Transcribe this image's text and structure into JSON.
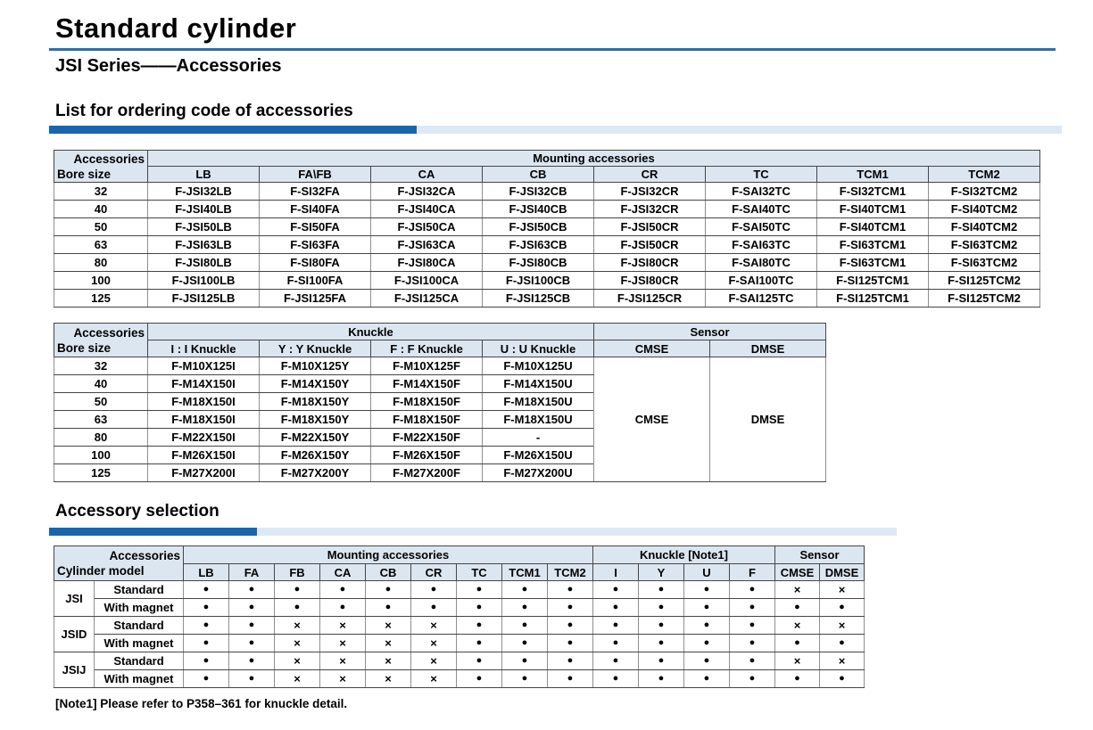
{
  "page": {
    "title": "Standard cylinder",
    "subtitle": "JSI Series——Accessories",
    "section1_heading": "List for ordering code of accessories",
    "section2_heading": "Accessory selection",
    "footnote": "[Note1]  Please refer to P358–361 for knuckle detail."
  },
  "colors": {
    "accent_dark_blue": "#1766ad",
    "accent_light_blue": "#dce9f5",
    "title_rule_blue": "#2c6fad",
    "table_header_bg": "#dce6f1"
  },
  "ordering_table": {
    "corner": {
      "top": "Accessories",
      "bottom": "Bore size"
    },
    "group_header": "Mounting accessories",
    "columns": [
      "LB",
      "FA\\FB",
      "CA",
      "CB",
      "CR",
      "TC",
      "TCM1",
      "TCM2"
    ],
    "rows": [
      {
        "bore": "32",
        "cells": [
          "F-JSI32LB",
          "F-SI32FA",
          "F-JSI32CA",
          "F-JSI32CB",
          "F-JSI32CR",
          "F-SAI32TC",
          "F-SI32TCM1",
          "F-SI32TCM2"
        ]
      },
      {
        "bore": "40",
        "cells": [
          "F-JSI40LB",
          "F-SI40FA",
          "F-JSI40CA",
          "F-JSI40CB",
          "F-JSI32CR",
          "F-SAI40TC",
          "F-SI40TCM1",
          "F-SI40TCM2"
        ]
      },
      {
        "bore": "50",
        "cells": [
          "F-JSI50LB",
          "F-SI50FA",
          "F-JSI50CA",
          "F-JSI50CB",
          "F-JSI50CR",
          "F-SAI50TC",
          "F-SI40TCM1",
          "F-SI40TCM2"
        ]
      },
      {
        "bore": "63",
        "cells": [
          "F-JSI63LB",
          "F-SI63FA",
          "F-JSI63CA",
          "F-JSI63CB",
          "F-JSI50CR",
          "F-SAI63TC",
          "F-SI63TCM1",
          "F-SI63TCM2"
        ]
      },
      {
        "bore": "80",
        "cells": [
          "F-JSI80LB",
          "F-SI80FA",
          "F-JSI80CA",
          "F-JSI80CB",
          "F-JSI80CR",
          "F-SAI80TC",
          "F-SI63TCM1",
          "F-SI63TCM2"
        ]
      },
      {
        "bore": "100",
        "cells": [
          "F-JSI100LB",
          "F-SI100FA",
          "F-JSI100CA",
          "F-JSI100CB",
          "F-JSI80CR",
          "F-SAI100TC",
          "F-SI125TCM1",
          "F-SI125TCM2"
        ]
      },
      {
        "bore": "125",
        "cells": [
          "F-JSI125LB",
          "F-JSI125FA",
          "F-JSI125CA",
          "F-JSI125CB",
          "F-JSI125CR",
          "F-SAI125TC",
          "F-SI125TCM1",
          "F-SI125TCM2"
        ]
      }
    ]
  },
  "knuckle_table": {
    "corner": {
      "top": "Accessories",
      "bottom": "Bore size"
    },
    "group_headers": {
      "knuckle": "Knuckle",
      "sensor": "Sensor"
    },
    "knuckle_columns": [
      "I : I Knuckle",
      "Y : Y Knuckle",
      "F : F Knuckle",
      "U : U Knuckle"
    ],
    "sensor_columns": [
      "CMSE",
      "DMSE"
    ],
    "rows": [
      {
        "bore": "32",
        "cells": [
          "F-M10X125I",
          "F-M10X125Y",
          "F-M10X125F",
          "F-M10X125U"
        ]
      },
      {
        "bore": "40",
        "cells": [
          "F-M14X150I",
          "F-M14X150Y",
          "F-M14X150F",
          "F-M14X150U"
        ]
      },
      {
        "bore": "50",
        "cells": [
          "F-M18X150I",
          "F-M18X150Y",
          "F-M18X150F",
          "F-M18X150U"
        ]
      },
      {
        "bore": "63",
        "cells": [
          "F-M18X150I",
          "F-M18X150Y",
          "F-M18X150F",
          "F-M18X150U"
        ]
      },
      {
        "bore": "80",
        "cells": [
          "F-M22X150I",
          "F-M22X150Y",
          "F-M22X150F",
          "-"
        ]
      },
      {
        "bore": "100",
        "cells": [
          "F-M26X150I",
          "F-M26X150Y",
          "F-M26X150F",
          "F-M26X150U"
        ]
      },
      {
        "bore": "125",
        "cells": [
          "F-M27X200I",
          "F-M27X200Y",
          "F-M27X200F",
          "F-M27X200U"
        ]
      }
    ],
    "sensor_values": [
      "CMSE",
      "DMSE"
    ]
  },
  "selection_table": {
    "corner": {
      "top": "Accessories",
      "bottom": "Cylinder model"
    },
    "groups": [
      {
        "label": "Mounting accessories",
        "columns": [
          "LB",
          "FA",
          "FB",
          "CA",
          "CB",
          "CR",
          "TC",
          "TCM1",
          "TCM2"
        ]
      },
      {
        "label": "Knuckle [Note1]",
        "columns": [
          "I",
          "Y",
          "U",
          "F"
        ]
      },
      {
        "label": "Sensor",
        "columns": [
          "CMSE",
          "DMSE"
        ]
      }
    ],
    "models": [
      {
        "name": "JSI",
        "variants": [
          {
            "label": "Standard",
            "marks": [
              "●",
              "●",
              "●",
              "●",
              "●",
              "●",
              "●",
              "●",
              "●",
              "●",
              "●",
              "●",
              "●",
              "×",
              "×"
            ]
          },
          {
            "label": "With magnet",
            "marks": [
              "●",
              "●",
              "●",
              "●",
              "●",
              "●",
              "●",
              "●",
              "●",
              "●",
              "●",
              "●",
              "●",
              "●",
              "●"
            ]
          }
        ]
      },
      {
        "name": "JSID",
        "variants": [
          {
            "label": "Standard",
            "marks": [
              "●",
              "●",
              "×",
              "×",
              "×",
              "×",
              "●",
              "●",
              "●",
              "●",
              "●",
              "●",
              "●",
              "×",
              "×"
            ]
          },
          {
            "label": "With magnet",
            "marks": [
              "●",
              "●",
              "×",
              "×",
              "×",
              "×",
              "●",
              "●",
              "●",
              "●",
              "●",
              "●",
              "●",
              "●",
              "●"
            ]
          }
        ]
      },
      {
        "name": "JSIJ",
        "variants": [
          {
            "label": "Standard",
            "marks": [
              "●",
              "●",
              "×",
              "×",
              "×",
              "×",
              "●",
              "●",
              "●",
              "●",
              "●",
              "●",
              "●",
              "×",
              "×"
            ]
          },
          {
            "label": "With magnet",
            "marks": [
              "●",
              "●",
              "×",
              "×",
              "×",
              "×",
              "●",
              "●",
              "●",
              "●",
              "●",
              "●",
              "●",
              "●",
              "●"
            ]
          }
        ]
      }
    ]
  }
}
